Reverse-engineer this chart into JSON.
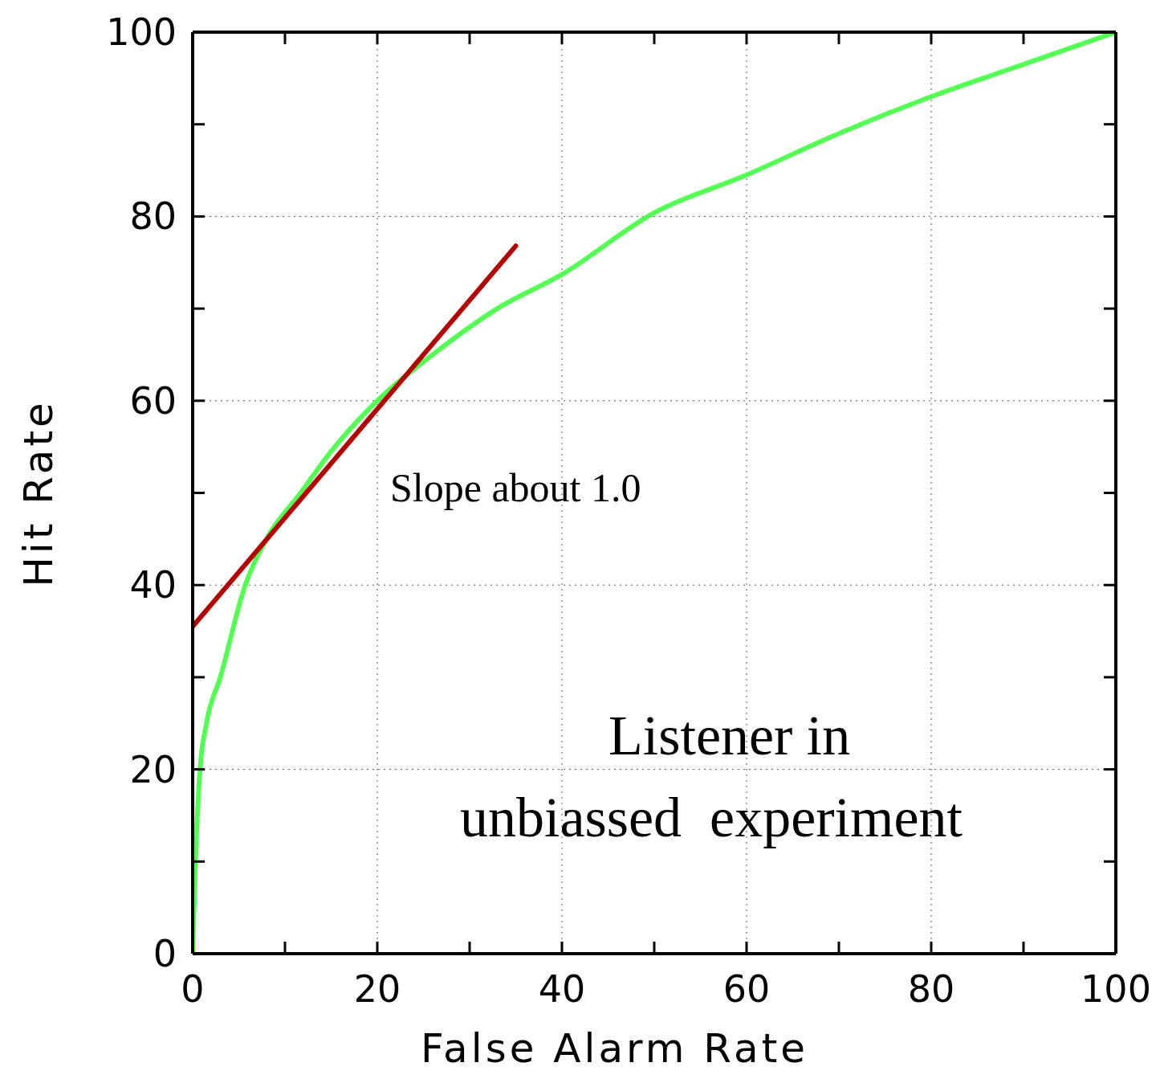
{
  "chart_data": {
    "type": "line",
    "xlabel": "False Alarm Rate",
    "ylabel": "Hit Rate",
    "xlim": [
      0,
      100
    ],
    "ylim": [
      0,
      100
    ],
    "xticks": [
      0,
      {
        "value": 10,
        "label": null
      },
      20,
      {
        "value": 30,
        "label": null
      },
      40,
      {
        "value": 50,
        "label": null
      },
      60,
      {
        "value": 70,
        "label": null
      },
      80,
      {
        "value": 90,
        "label": null
      },
      100
    ],
    "yticks": [
      0,
      {
        "value": 10,
        "label": null
      },
      20,
      {
        "value": 30,
        "label": null
      },
      40,
      {
        "value": 50,
        "label": null
      },
      60,
      {
        "value": 70,
        "label": null
      },
      80,
      {
        "value": 90,
        "label": null
      },
      100
    ],
    "grid": true,
    "marker": "none",
    "line_style": "solid",
    "series": [
      {
        "color": "#55ff55",
        "x": [
          0,
          0.3,
          0.8,
          1.5,
          3,
          5.7,
          8,
          11.7,
          15,
          20,
          26,
          33,
          40,
          50,
          60,
          70,
          80,
          90,
          100
        ],
        "values": [
          0,
          10,
          20,
          25,
          30,
          40,
          45,
          50,
          54.5,
          60,
          65,
          70,
          73.7,
          80.4,
          84.5,
          89,
          93,
          96.5,
          100
        ]
      },
      {
        "type": "line",
        "color": "#b00000",
        "x": [
          0,
          35
        ],
        "values": [
          35.5,
          76.8
        ]
      }
    ],
    "annotations": [
      "Slope about 1.0",
      "Listener in",
      "unbiassed  experiment"
    ]
  }
}
